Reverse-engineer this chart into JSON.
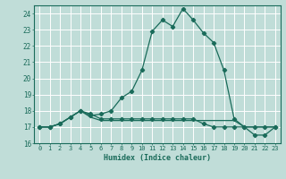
{
  "xlabel": "Humidex (Indice chaleur)",
  "ylabel": "",
  "xlim": [
    -0.5,
    23.5
  ],
  "ylim": [
    16,
    24.5
  ],
  "yticks": [
    16,
    17,
    18,
    19,
    20,
    21,
    22,
    23,
    24
  ],
  "xticks": [
    0,
    1,
    2,
    3,
    4,
    5,
    6,
    7,
    8,
    9,
    10,
    11,
    12,
    13,
    14,
    15,
    16,
    17,
    18,
    19,
    20,
    21,
    22,
    23
  ],
  "background_color": "#c0ddd8",
  "grid_color": "#ffffff",
  "line_color": "#1a6b5a",
  "line1_y": [
    17.0,
    17.0,
    17.2,
    17.6,
    18.0,
    17.7,
    17.8,
    18.0,
    18.8,
    19.2,
    20.5,
    22.9,
    23.6,
    23.2,
    24.3,
    23.6,
    22.8,
    22.2,
    20.5,
    17.5,
    17.0,
    16.5,
    16.5,
    17.0
  ],
  "line2_y": [
    17.0,
    17.0,
    17.2,
    17.6,
    18.0,
    17.8,
    17.5,
    17.5,
    17.5,
    17.5,
    17.5,
    17.5,
    17.5,
    17.5,
    17.5,
    17.5,
    17.2,
    17.0,
    17.0,
    17.0,
    17.0,
    17.0,
    17.0,
    17.0
  ],
  "line3_y": [
    17.0,
    17.0,
    17.2,
    17.6,
    18.0,
    17.6,
    17.4,
    17.4,
    17.4,
    17.4,
    17.4,
    17.4,
    17.4,
    17.4,
    17.4,
    17.4,
    17.4,
    17.4,
    17.4,
    17.4,
    17.0,
    17.0,
    17.0,
    17.0
  ]
}
